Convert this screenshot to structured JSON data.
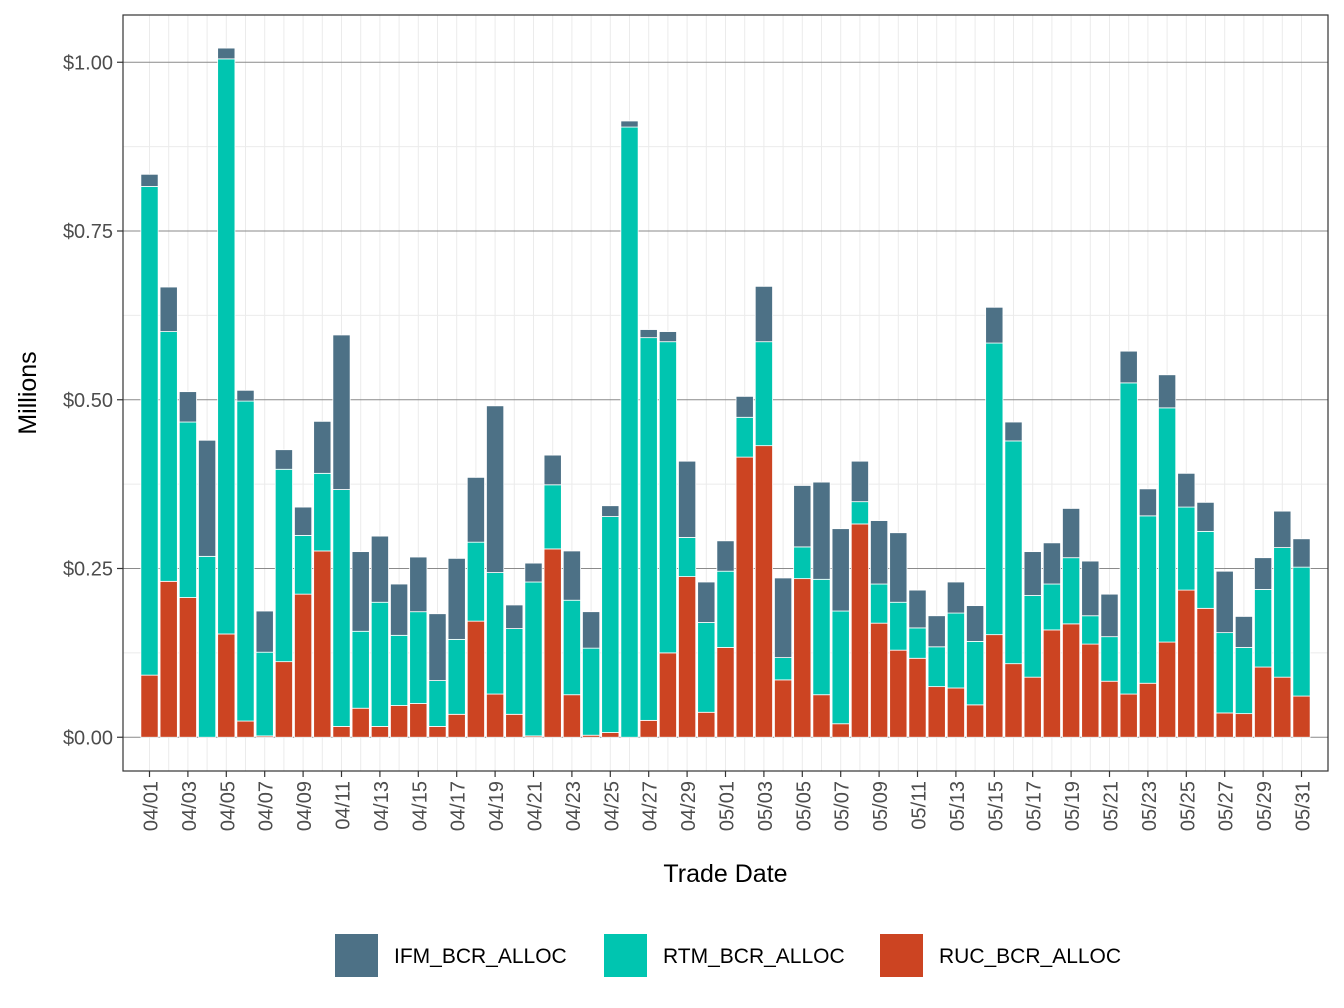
{
  "chart_data": {
    "type": "bar",
    "stacked": true,
    "xlabel": "Trade Date",
    "ylabel": "Millions",
    "ylim": [
      -0.05,
      1.07
    ],
    "y_ticks": [
      0,
      0.25,
      0.5,
      0.75,
      1.0
    ],
    "y_tick_labels": [
      "$0.00",
      "$0.25",
      "$0.50",
      "$0.75",
      "$1.00"
    ],
    "grid": true,
    "legend_position": "bottom",
    "categories": [
      "04/01",
      "04/02",
      "04/03",
      "04/04",
      "04/05",
      "04/06",
      "04/07",
      "04/08",
      "04/09",
      "04/10",
      "04/11",
      "04/12",
      "04/13",
      "04/14",
      "04/15",
      "04/16",
      "04/17",
      "04/18",
      "04/19",
      "04/20",
      "04/21",
      "04/22",
      "04/23",
      "04/24",
      "04/25",
      "04/26",
      "04/27",
      "04/28",
      "04/29",
      "04/30",
      "05/01",
      "05/02",
      "05/03",
      "05/04",
      "05/05",
      "05/06",
      "05/07",
      "05/08",
      "05/09",
      "05/10",
      "05/11",
      "05/12",
      "05/13",
      "05/14",
      "05/15",
      "05/16",
      "05/17",
      "05/18",
      "05/19",
      "05/20",
      "05/21",
      "05/22",
      "05/23",
      "05/24",
      "05/25",
      "05/26",
      "05/27",
      "05/28",
      "05/29",
      "05/30",
      "05/31"
    ],
    "x_tick_labels": [
      "04/01",
      "04/03",
      "04/05",
      "04/07",
      "04/09",
      "04/11",
      "04/13",
      "04/15",
      "04/17",
      "04/19",
      "04/21",
      "04/23",
      "04/25",
      "04/27",
      "04/29",
      "05/01",
      "05/03",
      "05/05",
      "05/07",
      "05/09",
      "05/11",
      "05/13",
      "05/15",
      "05/17",
      "05/19",
      "05/21",
      "05/23",
      "05/25",
      "05/27",
      "05/29",
      "05/31"
    ],
    "series": [
      {
        "name": "RUC_BCR_ALLOC",
        "color": "#cc4422",
        "values": [
          0.092,
          0.231,
          0.207,
          0.0,
          0.153,
          0.024,
          0.002,
          0.112,
          0.212,
          0.276,
          0.016,
          0.043,
          0.016,
          0.047,
          0.05,
          0.016,
          0.034,
          0.172,
          0.064,
          0.034,
          0.002,
          0.279,
          0.063,
          0.003,
          0.007,
          0.0,
          0.025,
          0.125,
          0.238,
          0.037,
          0.133,
          0.415,
          0.432,
          0.085,
          0.235,
          0.063,
          0.02,
          0.316,
          0.169,
          0.129,
          0.117,
          0.075,
          0.073,
          0.048,
          0.152,
          0.109,
          0.089,
          0.159,
          0.168,
          0.138,
          0.083,
          0.064,
          0.08,
          0.141,
          0.218,
          0.191,
          0.036,
          0.035,
          0.104,
          0.089,
          0.061
        ]
      },
      {
        "name": "RTM_BCR_ALLOC",
        "color": "#00c5b0",
        "values": [
          0.724,
          0.37,
          0.26,
          0.268,
          0.852,
          0.474,
          0.124,
          0.285,
          0.087,
          0.115,
          0.351,
          0.114,
          0.184,
          0.104,
          0.136,
          0.068,
          0.111,
          0.117,
          0.18,
          0.127,
          0.228,
          0.095,
          0.14,
          0.129,
          0.32,
          0.904,
          0.567,
          0.461,
          0.058,
          0.133,
          0.113,
          0.059,
          0.154,
          0.033,
          0.047,
          0.171,
          0.167,
          0.033,
          0.058,
          0.071,
          0.045,
          0.059,
          0.111,
          0.094,
          0.432,
          0.33,
          0.121,
          0.068,
          0.098,
          0.042,
          0.066,
          0.461,
          0.248,
          0.347,
          0.123,
          0.114,
          0.119,
          0.098,
          0.115,
          0.192,
          0.191
        ]
      },
      {
        "name": "IFM_BCR_ALLOC",
        "color": "#4d7186",
        "values": [
          0.018,
          0.066,
          0.045,
          0.172,
          0.016,
          0.016,
          0.061,
          0.029,
          0.042,
          0.077,
          0.229,
          0.118,
          0.098,
          0.076,
          0.081,
          0.099,
          0.12,
          0.096,
          0.247,
          0.035,
          0.028,
          0.044,
          0.073,
          0.054,
          0.016,
          0.009,
          0.012,
          0.015,
          0.113,
          0.06,
          0.045,
          0.031,
          0.082,
          0.118,
          0.091,
          0.144,
          0.122,
          0.06,
          0.094,
          0.103,
          0.056,
          0.046,
          0.046,
          0.053,
          0.053,
          0.028,
          0.065,
          0.061,
          0.073,
          0.081,
          0.063,
          0.047,
          0.04,
          0.049,
          0.05,
          0.043,
          0.091,
          0.046,
          0.047,
          0.054,
          0.042
        ]
      }
    ]
  }
}
